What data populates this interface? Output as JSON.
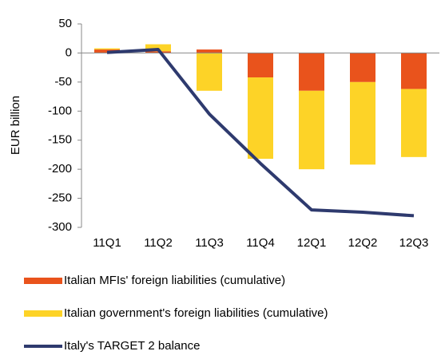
{
  "chart_data": {
    "type": "bar",
    "stacked": true,
    "y_label": "EUR billion",
    "categories": [
      "11Q1",
      "11Q2",
      "11Q3",
      "11Q4",
      "12Q1",
      "12Q2",
      "12Q3"
    ],
    "ylim": [
      -300,
      50
    ],
    "yticks": [
      -300,
      -250,
      -200,
      -150,
      -100,
      -50,
      0,
      50
    ],
    "series": [
      {
        "name": "Italian MFIs' foreign liabilities (cumulative)",
        "color": "#e9531c",
        "type": "bar",
        "values": [
          6,
          3,
          6,
          -42,
          -65,
          -50,
          -62
        ]
      },
      {
        "name": "Italian government's foreign liabilities (cumulative)",
        "color": "#fdd327",
        "type": "bar",
        "values": [
          2,
          12,
          -65,
          -140,
          -135,
          -142,
          -117
        ]
      },
      {
        "name": "Italy's TARGET 2 balance",
        "color": "#2e3a6e",
        "type": "line",
        "values": [
          1,
          6,
          -105,
          -190,
          -270,
          -274,
          -280
        ]
      }
    ]
  }
}
